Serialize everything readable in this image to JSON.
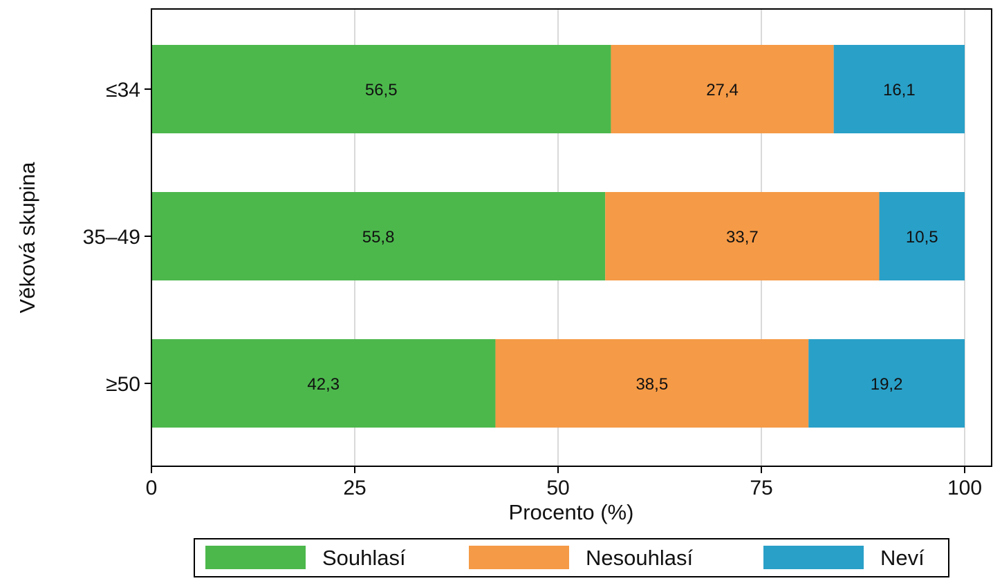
{
  "chart_data": {
    "type": "bar",
    "orientation": "horizontal",
    "stacked": true,
    "categories": [
      "≤34",
      "35–49",
      "≥50"
    ],
    "series": [
      {
        "name": "Souhlasí",
        "values": [
          56.5,
          55.8,
          42.3
        ],
        "labels": [
          "56,5",
          "55,8",
          "42,3"
        ],
        "color": "#4cb84c"
      },
      {
        "name": "Nesouhlasí",
        "values": [
          27.4,
          33.7,
          38.5
        ],
        "labels": [
          "27,4",
          "33,7",
          "38,5"
        ],
        "color": "#f59a46"
      },
      {
        "name": "Neví",
        "values": [
          16.1,
          10.5,
          19.2
        ],
        "labels": [
          "16,1",
          "10,5",
          "19,2"
        ],
        "color": "#29a0c8"
      }
    ],
    "title": "",
    "xlabel": "Procento (%)",
    "ylabel": "Věková skupina",
    "xlim": [
      0,
      100
    ],
    "xticks": [
      0,
      25,
      50,
      75,
      100
    ],
    "xtick_labels": [
      "0",
      "25",
      "50",
      "75",
      "100"
    ],
    "grid": "vertical",
    "legend_position": "bottom",
    "colors": {
      "grid": "#d9d9d9",
      "axis": "#000000"
    }
  }
}
